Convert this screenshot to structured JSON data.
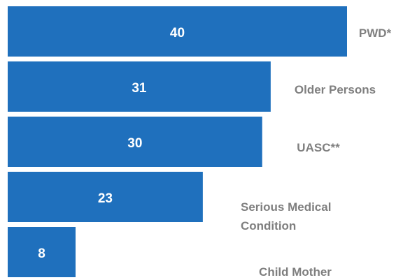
{
  "chart_data": {
    "type": "bar",
    "orientation": "horizontal",
    "categories": [
      "PWD*",
      "Older Persons",
      "UASC**",
      "Serious Medical Condition",
      "Child Mother"
    ],
    "values": [
      40,
      31,
      30,
      23,
      8
    ],
    "data_labels": [
      "40",
      "31",
      "30",
      "23",
      "8"
    ],
    "title": "",
    "xlabel": "",
    "ylabel": "",
    "xlim": [
      0,
      40
    ],
    "grid": false,
    "legend": "none",
    "bar_color": "#1f70bd",
    "label_color": "#7f7f7f"
  }
}
